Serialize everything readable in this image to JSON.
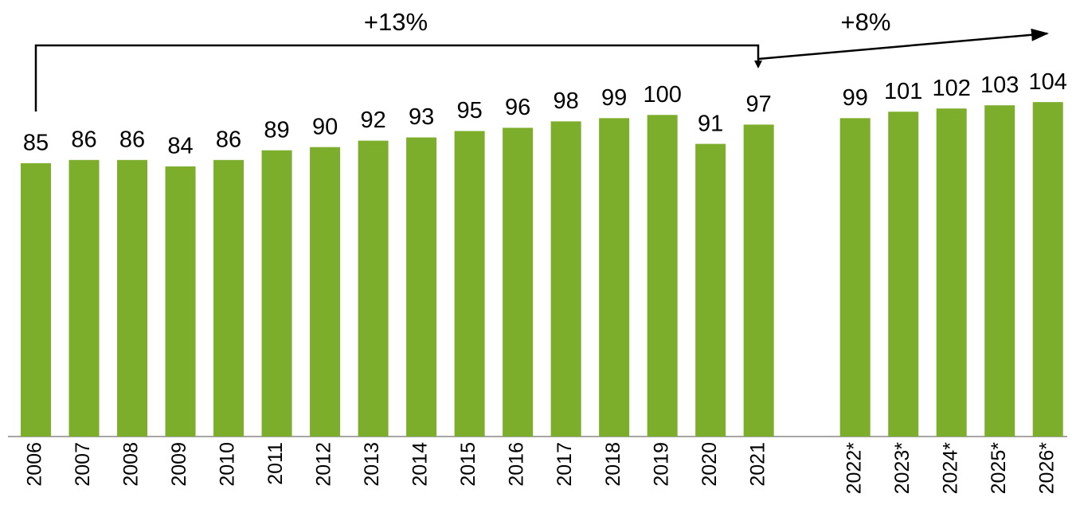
{
  "chart_data": {
    "type": "bar",
    "categories": [
      "2006",
      "2007",
      "2008",
      "2009",
      "2010",
      "2011",
      "2012",
      "2013",
      "2014",
      "2015",
      "2016",
      "2017",
      "2018",
      "2019",
      "2020",
      "2021",
      null,
      "2022*",
      "2023*",
      "2024*",
      "2025*",
      "2026*"
    ],
    "values": [
      85,
      86,
      86,
      84,
      86,
      89,
      90,
      92,
      93,
      95,
      96,
      98,
      99,
      100,
      91,
      97,
      null,
      99,
      101,
      102,
      103,
      104
    ],
    "color": "#7cad2b",
    "ylim": [
      0,
      135
    ],
    "annotations": [
      "+13%",
      "+8%"
    ]
  }
}
